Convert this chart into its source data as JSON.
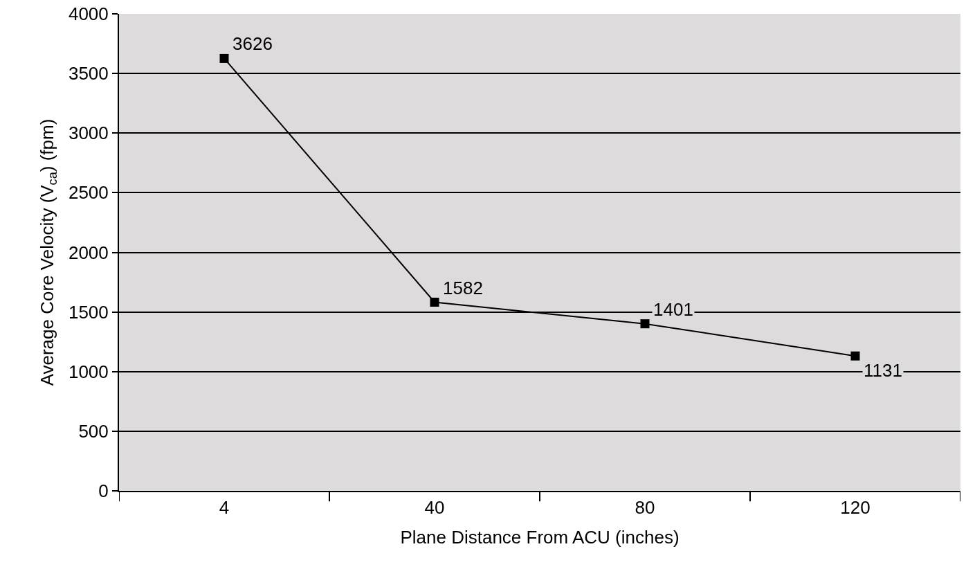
{
  "chart_data": {
    "type": "line",
    "xlabel": "Plane Distance From ACU (inches)",
    "ylabel": "Average Core Velocity (V$_{ca}$) (fpm)",
    "categories": [
      "4",
      "40",
      "80",
      "120"
    ],
    "series": [
      {
        "color": "#000000",
        "values": [
          3626,
          1582,
          1401,
          1131
        ]
      }
    ],
    "ylim": [
      0,
      4000
    ],
    "yticks": [
      0,
      500,
      1000,
      1500,
      2000,
      2500,
      3000,
      3500,
      4000
    ],
    "grid": "y",
    "marker": "square",
    "line_style": "solid",
    "data_labels": true
  }
}
